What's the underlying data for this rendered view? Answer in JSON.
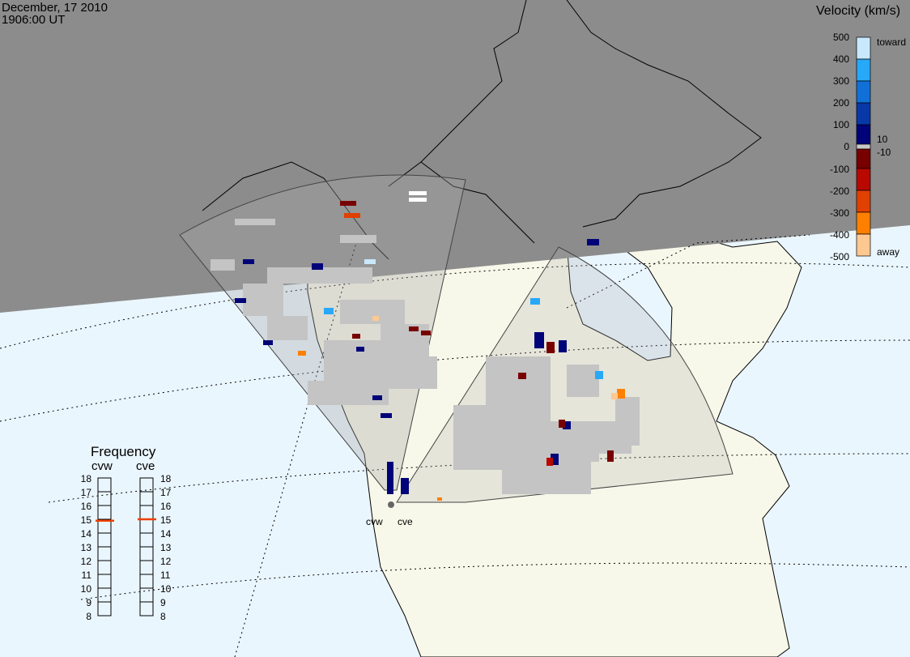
{
  "title": {
    "date": "December, 17 2010",
    "time": "1906:00 UT"
  },
  "colorbar": {
    "title": "Velocity (km/s)",
    "ticks": [
      "500",
      "400",
      "300",
      "200",
      "100",
      "0",
      "-100",
      "-200",
      "-300",
      "-400",
      "-500"
    ],
    "label_toward": "toward",
    "label_away": "away",
    "label_pos": "10",
    "label_neg": "-10",
    "colors": [
      "#c8e8fc",
      "#28a8f8",
      "#1070d8",
      "#0838a8",
      "#000478",
      "#c8c8c8",
      "#780000",
      "#b80800",
      "#e04000",
      "#ff8000",
      "#ffc890"
    ]
  },
  "frequency": {
    "title": "Frequency",
    "radars": [
      {
        "name": "cvw",
        "value": 14.9
      },
      {
        "name": "cve",
        "value": 15.0
      }
    ],
    "ticks": [
      "18",
      "17",
      "16",
      "15",
      "14",
      "13",
      "12",
      "11",
      "10",
      "9",
      "8"
    ],
    "range": [
      8,
      18
    ]
  },
  "map": {
    "radar_labels": [
      "cvw",
      "cve"
    ],
    "colors": {
      "ocean": "#eaf6fe",
      "land": "#f8f8ea",
      "night": "#8c8c8c",
      "ground_scatter": "#c4c4c4"
    }
  }
}
